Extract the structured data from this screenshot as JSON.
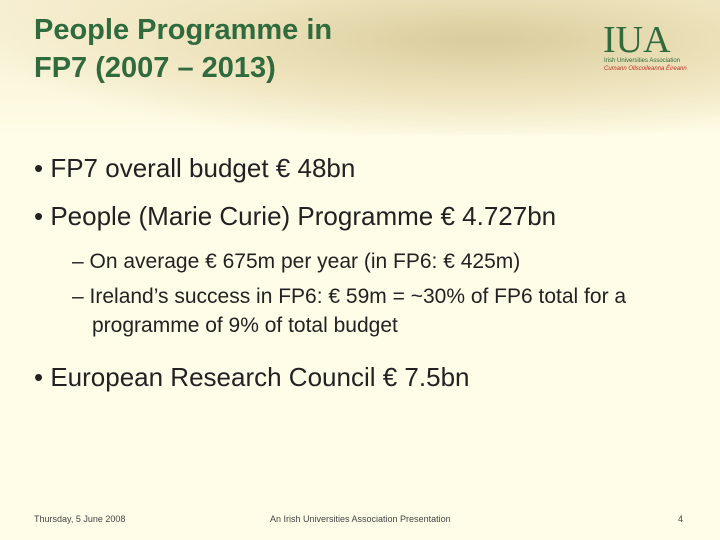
{
  "header": {
    "title_line1": "People Programme in",
    "title_line2": "FP7 (2007 – 2013)",
    "logo_text": "IUA",
    "logo_sub1": "Irish Universities Association",
    "logo_sub2": "Cumann Ollscoileanna Éireann"
  },
  "bullets": [
    {
      "text": "FP7 overall budget € 48bn"
    },
    {
      "text": "People (Marie Curie) Programme € 4.727bn",
      "sub": [
        "On average € 675m per year (in FP6: € 425m)",
        "Ireland’s success in FP6: € 59m = ~30% of  FP6 total for a programme of 9% of total budget"
      ]
    },
    {
      "text": "European Research Council € 7.5bn"
    }
  ],
  "footer": {
    "date": "Thursday, 5 June 2008",
    "center": "An Irish Universities Association Presentation",
    "page": "4"
  }
}
